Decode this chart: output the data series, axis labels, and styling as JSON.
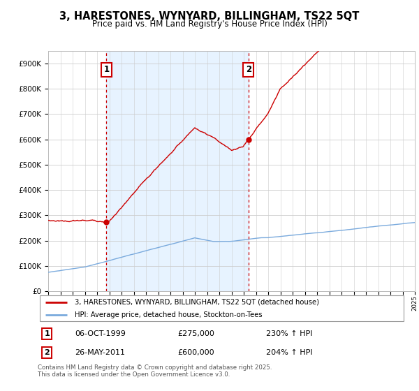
{
  "title": "3, HARESTONES, WYNYARD, BILLINGHAM, TS22 5QT",
  "subtitle": "Price paid vs. HM Land Registry's House Price Index (HPI)",
  "legend_property": "3, HARESTONES, WYNYARD, BILLINGHAM, TS22 5QT (detached house)",
  "legend_hpi": "HPI: Average price, detached house, Stockton-on-Tees",
  "annotation1_date": "06-OCT-1999",
  "annotation1_price": 275000,
  "annotation1_hpi": "230% ↑ HPI",
  "annotation2_date": "26-MAY-2011",
  "annotation2_price": 600000,
  "annotation2_hpi": "204% ↑ HPI",
  "footer": "Contains HM Land Registry data © Crown copyright and database right 2025.\nThis data is licensed under the Open Government Licence v3.0.",
  "property_color": "#cc0000",
  "hpi_color": "#7aaadd",
  "shade_color": "#ddeeff",
  "annotation_color": "#cc0000",
  "background_color": "#ffffff",
  "grid_color": "#cccccc",
  "ylim_min": 0,
  "ylim_max": 950000,
  "year_start": 1995,
  "year_end": 2025,
  "annotation1_year": 1999.76,
  "annotation2_year": 2011.39
}
